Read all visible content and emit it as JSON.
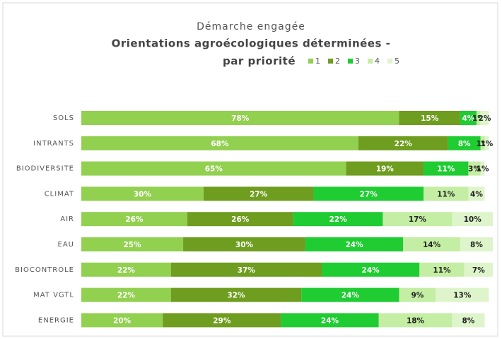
{
  "chart_data": {
    "type": "stacked-bar-horizontal",
    "subtitle": "Démarche engagée",
    "title_lines": [
      "Orientations agroécologiques déterminées -",
      "par priorité"
    ],
    "categories": [
      "SOLS",
      "INTRANTS",
      "BIODIVERSITE",
      "CLIMAT",
      "AIR",
      "EAU",
      "BIOCONTROLE",
      "MAT VGTL",
      "ENERGIE"
    ],
    "xlim": [
      0,
      101
    ],
    "series": [
      {
        "name": "1",
        "color": "#92d050",
        "label_color": "#ffffff",
        "values": [
          78,
          68,
          65,
          30,
          26,
          25,
          22,
          22,
          20
        ],
        "value_labels": [
          "78%",
          "68%",
          "65%",
          "30%",
          "26%",
          "25%",
          "22%",
          "22%",
          "20%"
        ]
      },
      {
        "name": "2",
        "color": "#6e9d1f",
        "label_color": "#ffffff",
        "values": [
          15,
          22,
          19,
          27,
          26,
          30,
          37,
          32,
          29
        ],
        "value_labels": [
          "15%",
          "22%",
          "19%",
          "27%",
          "26%",
          "30%",
          "37%",
          "32%",
          "29%"
        ]
      },
      {
        "name": "3",
        "color": "#1fcc32",
        "label_color": "#ffffff",
        "values": [
          4,
          8,
          11,
          27,
          22,
          24,
          24,
          24,
          24
        ],
        "value_labels": [
          "4%",
          "8%",
          "11%",
          "27%",
          "22%",
          "24%",
          "24%",
          "24%",
          "24%"
        ]
      },
      {
        "name": "4",
        "color": "#c4eea3",
        "label_color": "#222222",
        "values": [
          1,
          1,
          3,
          11,
          17,
          14,
          11,
          9,
          18
        ],
        "value_labels": [
          "1%",
          "1%",
          "3%",
          "11%",
          "17%",
          "14%",
          "11%",
          "9%",
          "18%"
        ]
      },
      {
        "name": "5",
        "color": "#def5cb",
        "label_color": "#222222",
        "values": [
          2,
          1,
          1,
          4,
          10,
          8,
          7,
          13,
          8
        ],
        "value_labels": [
          "2%",
          "1%",
          "1%",
          "4%",
          "10%",
          "8%",
          "7%",
          "13%",
          "8%"
        ]
      }
    ]
  }
}
